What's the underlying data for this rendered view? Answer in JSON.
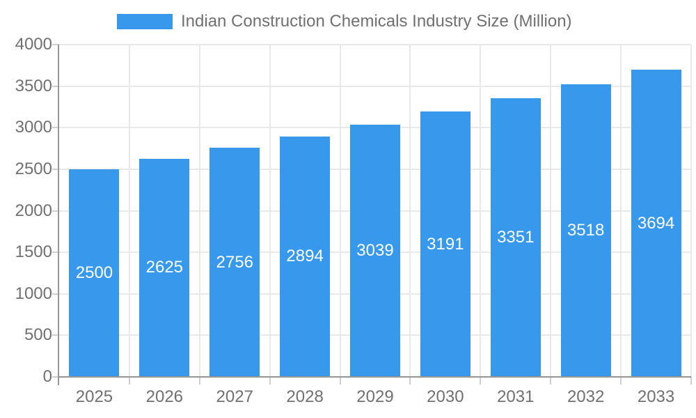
{
  "chart_data": {
    "type": "bar",
    "categories": [
      "2025",
      "2026",
      "2027",
      "2028",
      "2029",
      "2030",
      "2031",
      "2032",
      "2033"
    ],
    "series": [
      {
        "name": "Indian Construction Chemicals Industry Size (Million)",
        "values": [
          2500,
          2625,
          2756,
          2894,
          3039,
          3191,
          3351,
          3518,
          3694
        ]
      }
    ],
    "yticks": [
      0,
      500,
      1000,
      1500,
      2000,
      2500,
      3000,
      3500,
      4000
    ],
    "ylim": [
      0,
      4000
    ],
    "xlabel": "",
    "ylabel": "",
    "grid": true,
    "legend_position": "top",
    "bar_labels_inside": true,
    "colors": {
      "bar": "#3899ec",
      "bar_label": "#ffffff",
      "axis_text": "#707070",
      "grid_line": "#e8e8e8",
      "axis_line": "#969696",
      "tick_mark": "#cfcfcf",
      "background": "#ffffff"
    }
  }
}
